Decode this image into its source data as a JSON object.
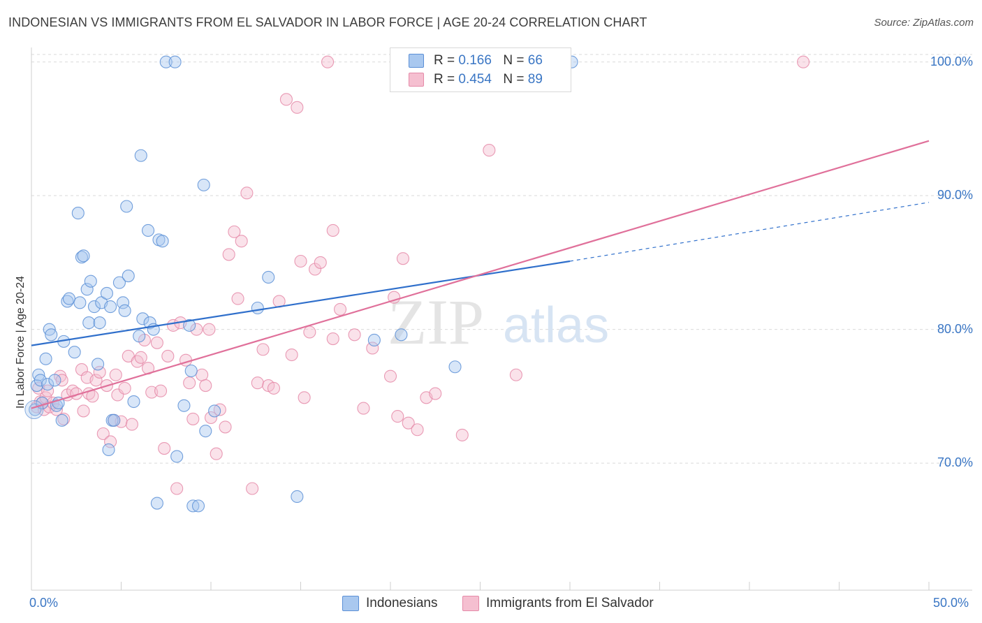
{
  "header": {
    "title": "INDONESIAN VS IMMIGRANTS FROM EL SALVADOR IN LABOR FORCE | AGE 20-24 CORRELATION CHART",
    "source": "Source: ZipAtlas.com"
  },
  "watermark": {
    "zip": "ZIP",
    "atlas": "atlas"
  },
  "colors": {
    "blue_fill": "#a9c8ef",
    "blue_stroke": "#5b8fd6",
    "blue_line": "#2f6fcb",
    "pink_fill": "#f5bfd0",
    "pink_stroke": "#e58aa8",
    "pink_line": "#e0709a",
    "axis_label": "#3a76c4",
    "grid": "#d9d9d9"
  },
  "legend_top": {
    "rows": [
      {
        "r_label": "R =",
        "r_value": "0.166",
        "n_label": "N =",
        "n_value": "66"
      },
      {
        "r_label": "R =",
        "r_value": "0.454",
        "n_label": "N =",
        "n_value": "89"
      }
    ]
  },
  "chart_data": {
    "type": "scatter",
    "title": "INDONESIAN VS IMMIGRANTS FROM EL SALVADOR IN LABOR FORCE | AGE 20-24 CORRELATION CHART",
    "xlabel": "",
    "ylabel": "In Labor Force | Age 20-24",
    "xlim": [
      0,
      50
    ],
    "ylim": [
      60.5,
      101.5
    ],
    "x_tick_labels": [
      "0.0%",
      "50.0%"
    ],
    "y_ticks": [
      70,
      80,
      90,
      100
    ],
    "y_tick_labels": [
      "70.0%",
      "80.0%",
      "90.0%",
      "100.0%"
    ],
    "legend_position": "bottom-center",
    "series": [
      {
        "name": "Indonesians",
        "r": 0.166,
        "n": 66,
        "trend": {
          "x0": 0,
          "y0": 78.8,
          "x1": 30,
          "y1": 85.1,
          "dash_x1": 50,
          "dash_y1": 89.5
        },
        "points": [
          [
            0.2,
            74.0
          ],
          [
            0.3,
            75.8
          ],
          [
            0.4,
            76.6
          ],
          [
            0.5,
            76.2
          ],
          [
            0.6,
            74.5
          ],
          [
            0.8,
            77.8
          ],
          [
            0.9,
            75.9
          ],
          [
            1.0,
            80.0
          ],
          [
            1.1,
            79.6
          ],
          [
            1.3,
            76.2
          ],
          [
            1.4,
            74.3
          ],
          [
            1.5,
            74.5
          ],
          [
            1.7,
            73.2
          ],
          [
            1.8,
            79.1
          ],
          [
            2.0,
            82.1
          ],
          [
            2.1,
            82.3
          ],
          [
            2.4,
            78.3
          ],
          [
            2.6,
            88.7
          ],
          [
            2.7,
            82.0
          ],
          [
            2.8,
            85.4
          ],
          [
            2.9,
            85.5
          ],
          [
            3.1,
            83.0
          ],
          [
            3.2,
            80.5
          ],
          [
            3.3,
            83.6
          ],
          [
            3.5,
            81.7
          ],
          [
            3.7,
            77.4
          ],
          [
            3.8,
            80.5
          ],
          [
            3.9,
            82.0
          ],
          [
            4.2,
            82.7
          ],
          [
            4.3,
            71.0
          ],
          [
            4.4,
            81.7
          ],
          [
            4.5,
            73.2
          ],
          [
            4.6,
            73.2
          ],
          [
            4.9,
            83.5
          ],
          [
            5.1,
            82.0
          ],
          [
            5.2,
            81.4
          ],
          [
            5.3,
            89.2
          ],
          [
            5.4,
            84.0
          ],
          [
            5.7,
            74.6
          ],
          [
            6.0,
            79.5
          ],
          [
            6.1,
            93.0
          ],
          [
            6.2,
            80.8
          ],
          [
            6.5,
            87.4
          ],
          [
            6.6,
            80.5
          ],
          [
            6.8,
            80.0
          ],
          [
            7.0,
            67.0
          ],
          [
            7.1,
            86.7
          ],
          [
            7.3,
            86.6
          ],
          [
            7.5,
            100.0
          ],
          [
            8.0,
            100.0
          ],
          [
            8.1,
            70.5
          ],
          [
            8.5,
            74.3
          ],
          [
            8.8,
            80.3
          ],
          [
            8.9,
            76.9
          ],
          [
            9.0,
            66.8
          ],
          [
            9.3,
            66.8
          ],
          [
            9.6,
            90.8
          ],
          [
            9.7,
            72.4
          ],
          [
            10.2,
            73.9
          ],
          [
            12.6,
            81.6
          ],
          [
            13.2,
            83.9
          ],
          [
            14.8,
            67.5
          ],
          [
            19.1,
            79.2
          ],
          [
            20.6,
            79.6
          ],
          [
            23.6,
            77.2
          ],
          [
            30.1,
            100.0
          ]
        ]
      },
      {
        "name": "Immigrants from El Salvador",
        "r": 0.454,
        "n": 89,
        "trend": {
          "x0": 0,
          "y0": 74.1,
          "x1": 50,
          "y1": 94.1
        },
        "points": [
          [
            0.3,
            74.2
          ],
          [
            0.4,
            75.6
          ],
          [
            0.5,
            74.6
          ],
          [
            0.6,
            74.5
          ],
          [
            0.7,
            74.0
          ],
          [
            0.8,
            74.9
          ],
          [
            0.9,
            75.4
          ],
          [
            1.0,
            74.2
          ],
          [
            1.2,
            74.5
          ],
          [
            1.4,
            74.0
          ],
          [
            1.6,
            76.5
          ],
          [
            1.7,
            76.2
          ],
          [
            1.8,
            73.3
          ],
          [
            2.0,
            75.1
          ],
          [
            2.3,
            75.4
          ],
          [
            2.5,
            75.2
          ],
          [
            2.8,
            77.0
          ],
          [
            2.9,
            73.9
          ],
          [
            3.1,
            76.4
          ],
          [
            3.2,
            75.2
          ],
          [
            3.4,
            75.0
          ],
          [
            3.6,
            76.2
          ],
          [
            3.8,
            76.8
          ],
          [
            4.0,
            72.2
          ],
          [
            4.2,
            75.8
          ],
          [
            4.4,
            71.6
          ],
          [
            4.6,
            73.2
          ],
          [
            4.7,
            76.6
          ],
          [
            4.8,
            75.1
          ],
          [
            5.0,
            73.1
          ],
          [
            5.2,
            75.6
          ],
          [
            5.4,
            78.0
          ],
          [
            5.6,
            72.9
          ],
          [
            5.9,
            77.6
          ],
          [
            6.1,
            77.9
          ],
          [
            6.3,
            79.2
          ],
          [
            6.5,
            77.1
          ],
          [
            6.7,
            75.3
          ],
          [
            7.0,
            79.0
          ],
          [
            7.2,
            75.4
          ],
          [
            7.4,
            71.1
          ],
          [
            7.6,
            78.0
          ],
          [
            7.9,
            80.3
          ],
          [
            8.1,
            68.1
          ],
          [
            8.3,
            80.5
          ],
          [
            8.6,
            77.7
          ],
          [
            8.8,
            76.0
          ],
          [
            9.0,
            73.3
          ],
          [
            9.2,
            80.0
          ],
          [
            9.5,
            76.6
          ],
          [
            9.7,
            75.8
          ],
          [
            9.9,
            80.0
          ],
          [
            10.0,
            73.4
          ],
          [
            10.3,
            70.7
          ],
          [
            10.5,
            74.0
          ],
          [
            10.8,
            72.7
          ],
          [
            11.0,
            85.6
          ],
          [
            11.3,
            87.3
          ],
          [
            11.5,
            82.3
          ],
          [
            11.7,
            86.6
          ],
          [
            12.0,
            90.2
          ],
          [
            12.3,
            68.1
          ],
          [
            12.6,
            76.0
          ],
          [
            12.9,
            78.5
          ],
          [
            13.2,
            75.8
          ],
          [
            13.5,
            75.6
          ],
          [
            13.8,
            82.1
          ],
          [
            14.2,
            97.2
          ],
          [
            14.5,
            78.1
          ],
          [
            14.8,
            96.6
          ],
          [
            15.2,
            74.9
          ],
          [
            15.5,
            79.8
          ],
          [
            15.8,
            84.5
          ],
          [
            16.1,
            85.0
          ],
          [
            16.5,
            100.0
          ],
          [
            16.8,
            79.3
          ],
          [
            17.2,
            81.5
          ],
          [
            18.0,
            79.6
          ],
          [
            18.5,
            74.1
          ],
          [
            19.0,
            78.6
          ],
          [
            20.0,
            76.5
          ],
          [
            20.4,
            73.5
          ],
          [
            21.0,
            73.0
          ],
          [
            21.5,
            72.5
          ],
          [
            22.0,
            74.9
          ],
          [
            22.5,
            75.2
          ],
          [
            24.0,
            72.1
          ],
          [
            25.5,
            93.4
          ],
          [
            27.0,
            76.6
          ]
        ]
      }
    ],
    "series_extra": {
      "Immigrants from El Salvador": [
        [
          15.0,
          85.1
        ],
        [
          16.8,
          87.4
        ],
        [
          20.2,
          82.4
        ],
        [
          20.7,
          85.3
        ],
        [
          43.0,
          100.0
        ]
      ]
    }
  }
}
